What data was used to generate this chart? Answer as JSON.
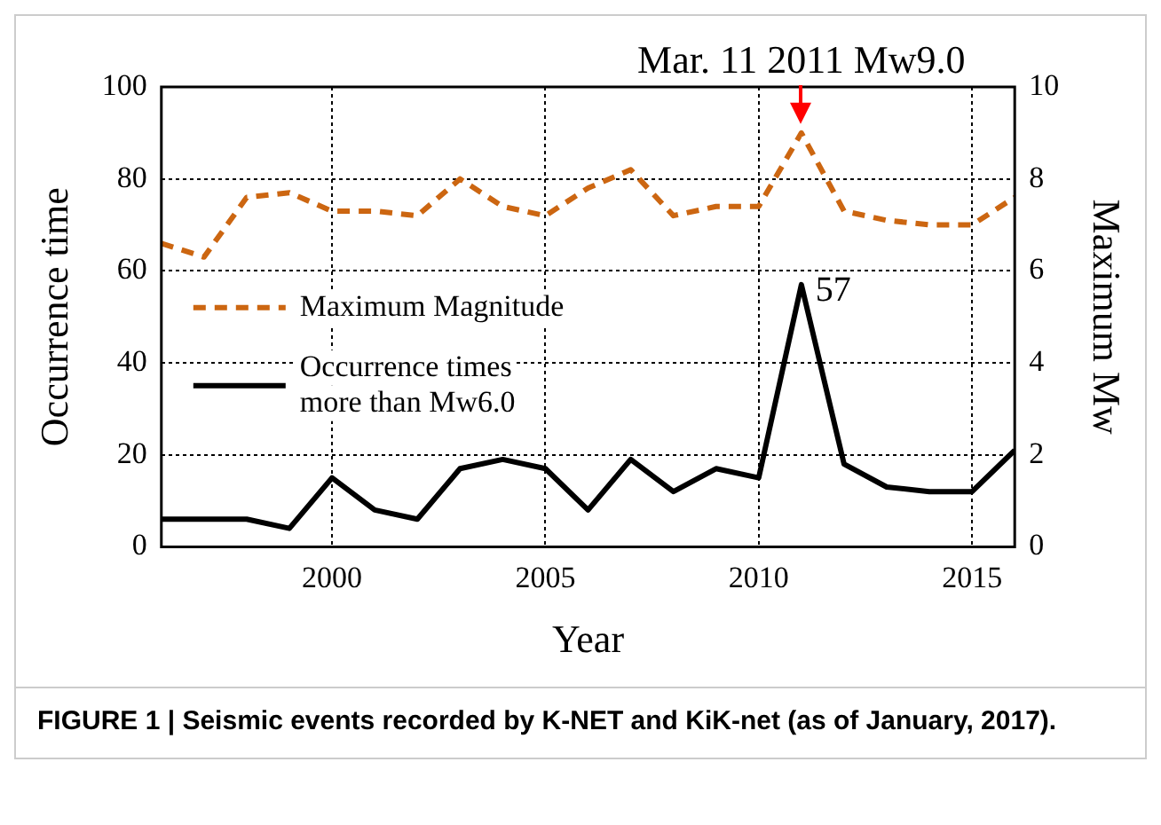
{
  "chart_data": {
    "type": "line",
    "xlabel": "Year",
    "ylabel": "Occurrence time",
    "y2label": "Maximum Mw",
    "x": [
      1996,
      1997,
      1998,
      1999,
      2000,
      2001,
      2002,
      2003,
      2004,
      2005,
      2006,
      2007,
      2008,
      2009,
      2010,
      2011,
      2012,
      2013,
      2014,
      2015,
      2016
    ],
    "series": [
      {
        "name": "Maximum Magnitude",
        "color": "#cc6611",
        "axis": "y2",
        "line_style": "dashed",
        "values": [
          6.6,
          6.3,
          7.6,
          7.7,
          7.3,
          7.3,
          7.2,
          8.0,
          7.4,
          7.2,
          7.8,
          8.2,
          7.2,
          7.4,
          7.4,
          9.0,
          7.3,
          7.1,
          7.0,
          7.0,
          7.6
        ]
      },
      {
        "name": "Occurrence times more than Mw6.0",
        "color": "#000000",
        "line_style": "solid",
        "values": [
          6,
          6,
          6,
          4,
          15,
          8,
          6,
          17,
          19,
          17,
          8,
          19,
          12,
          17,
          15,
          57,
          18,
          13,
          12,
          12,
          21
        ]
      }
    ],
    "xlim": [
      1996,
      2016
    ],
    "xticks": [
      2000,
      2005,
      2010,
      2015
    ],
    "ylim": [
      0,
      100
    ],
    "yticks": [
      0,
      20,
      40,
      60,
      80,
      100
    ],
    "y2lim": [
      0,
      10
    ],
    "y2ticks": [
      0,
      2,
      4,
      6,
      8,
      10
    ],
    "grid": true,
    "legend": "left",
    "marker": "none",
    "annotations": [
      {
        "text": "Mar. 11 2011 Mw9.0",
        "x": 2011,
        "y": 90
      },
      {
        "text": "57",
        "x": 2011,
        "y": 57
      },
      "FIGURE 1 | Seismic events recorded by K-NET and KiK-net (as of January, 2017)."
    ]
  }
}
